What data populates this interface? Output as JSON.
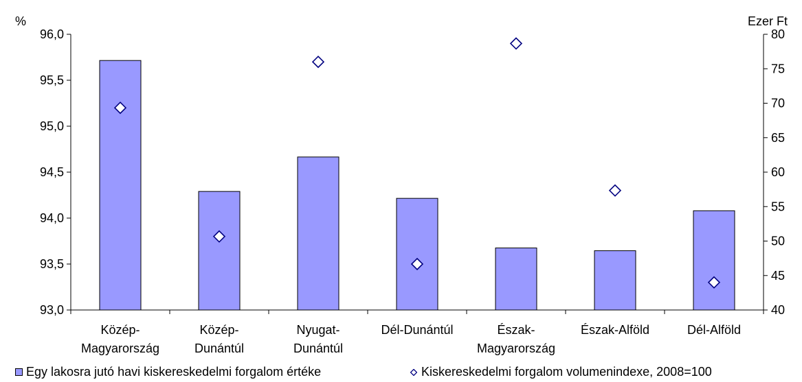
{
  "chart_data": {
    "type": "bar",
    "title": "",
    "y_left_unit": "%",
    "y_right_unit": "Ezer Ft",
    "categories": [
      [
        "Közép-",
        "Magyarország"
      ],
      [
        "Közép-",
        "Dunántúl"
      ],
      [
        "Nyugat-",
        "Dunántúl"
      ],
      [
        "Dél-Dunántúl"
      ],
      [
        "Észak-",
        "Magyarország"
      ],
      [
        "Észak-Alföld"
      ],
      [
        "Dél-Alföld"
      ]
    ],
    "y_left": {
      "min": 93.0,
      "max": 96.0,
      "step": 0.5,
      "ticks": [
        "93,0",
        "93,5",
        "94,0",
        "94,5",
        "95,0",
        "95,5",
        "96,0"
      ]
    },
    "y_right": {
      "min": 40,
      "max": 80,
      "step": 5,
      "ticks": [
        "40",
        "45",
        "50",
        "55",
        "60",
        "65",
        "70",
        "75",
        "80"
      ]
    },
    "series": [
      {
        "name": "Egy lakosra jutó havi kiskereskedelmi forgalom értéke",
        "type": "bar",
        "axis": "right",
        "color": "#9999ff",
        "values": [
          76.2,
          57.2,
          62.2,
          56.2,
          49.0,
          48.6,
          54.4
        ]
      },
      {
        "name": "Kiskereskedelmi forgalom volumenindexe, 2008=100",
        "type": "scatter",
        "axis": "left",
        "marker": "diamond",
        "color": "#000080",
        "values": [
          95.2,
          93.8,
          95.7,
          93.5,
          95.9,
          94.3,
          93.3
        ]
      }
    ],
    "grid": false,
    "legend_position": "bottom"
  }
}
